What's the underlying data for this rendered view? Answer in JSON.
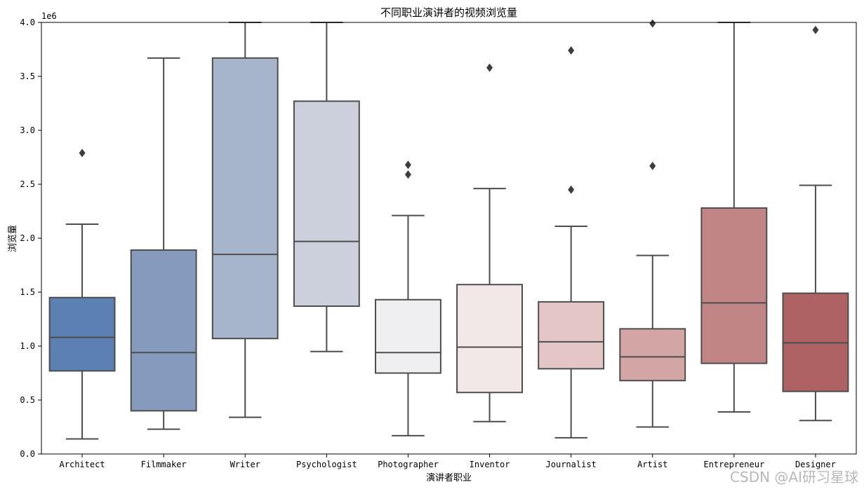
{
  "watermark": "CSDN @AI研习星球",
  "chart_data": {
    "type": "box",
    "title": "不同职业演讲者的视频浏览量",
    "xlabel": "演讲者职业",
    "ylabel": "浏览量",
    "y_scale_label": "1e6",
    "ylim": [
      0,
      4000000
    ],
    "yticks": [
      0,
      500000,
      1000000,
      1500000,
      2000000,
      2500000,
      3000000,
      3500000,
      4000000
    ],
    "ytick_labels": [
      "0.0",
      "0.5",
      "1.0",
      "1.5",
      "2.0",
      "2.5",
      "3.0",
      "3.5",
      "4.0"
    ],
    "grid": false,
    "categories": [
      "Architect",
      "Filmmaker",
      "Writer",
      "Psychologist",
      "Photographer",
      "Inventor",
      "Journalist",
      "Artist",
      "Entrepreneur",
      "Designer"
    ],
    "boxes": [
      {
        "whisker_low": 140000,
        "q1": 770000,
        "median": 1080000,
        "q3": 1450000,
        "whisker_high": 2130000,
        "outliers": [
          2790000
        ],
        "color": "#5b80b2"
      },
      {
        "whisker_low": 230000,
        "q1": 400000,
        "median": 940000,
        "q3": 1890000,
        "whisker_high": 3670000,
        "outliers": [],
        "color": "#849bbd"
      },
      {
        "whisker_low": 340000,
        "q1": 1070000,
        "median": 1850000,
        "q3": 3670000,
        "whisker_high": 4000000,
        "outliers": [],
        "color": "#a7b5ca"
      },
      {
        "whisker_low": 950000,
        "q1": 1370000,
        "median": 1970000,
        "q3": 3270000,
        "whisker_high": 4000000,
        "outliers": [],
        "color": "#cbd0dc"
      },
      {
        "whisker_low": 170000,
        "q1": 750000,
        "median": 940000,
        "q3": 1430000,
        "whisker_high": 2210000,
        "outliers": [
          2590000,
          2680000
        ],
        "color": "#efeff1"
      },
      {
        "whisker_low": 300000,
        "q1": 570000,
        "median": 990000,
        "q3": 1570000,
        "whisker_high": 2460000,
        "outliers": [
          3580000
        ],
        "color": "#f3e8e8"
      },
      {
        "whisker_low": 150000,
        "q1": 790000,
        "median": 1040000,
        "q3": 1410000,
        "whisker_high": 2110000,
        "outliers": [
          2450000,
          3740000
        ],
        "color": "#e4c6c6"
      },
      {
        "whisker_low": 250000,
        "q1": 680000,
        "median": 900000,
        "q3": 1160000,
        "whisker_high": 1840000,
        "outliers": [
          2670000,
          3990000
        ],
        "color": "#d3a5a4"
      },
      {
        "whisker_low": 390000,
        "q1": 840000,
        "median": 1400000,
        "q3": 2280000,
        "whisker_high": 4000000,
        "outliers": [],
        "color": "#c08584"
      },
      {
        "whisker_low": 310000,
        "q1": 580000,
        "median": 1030000,
        "q3": 1490000,
        "whisker_high": 2490000,
        "outliers": [
          3930000
        ],
        "color": "#ae6263"
      }
    ]
  }
}
